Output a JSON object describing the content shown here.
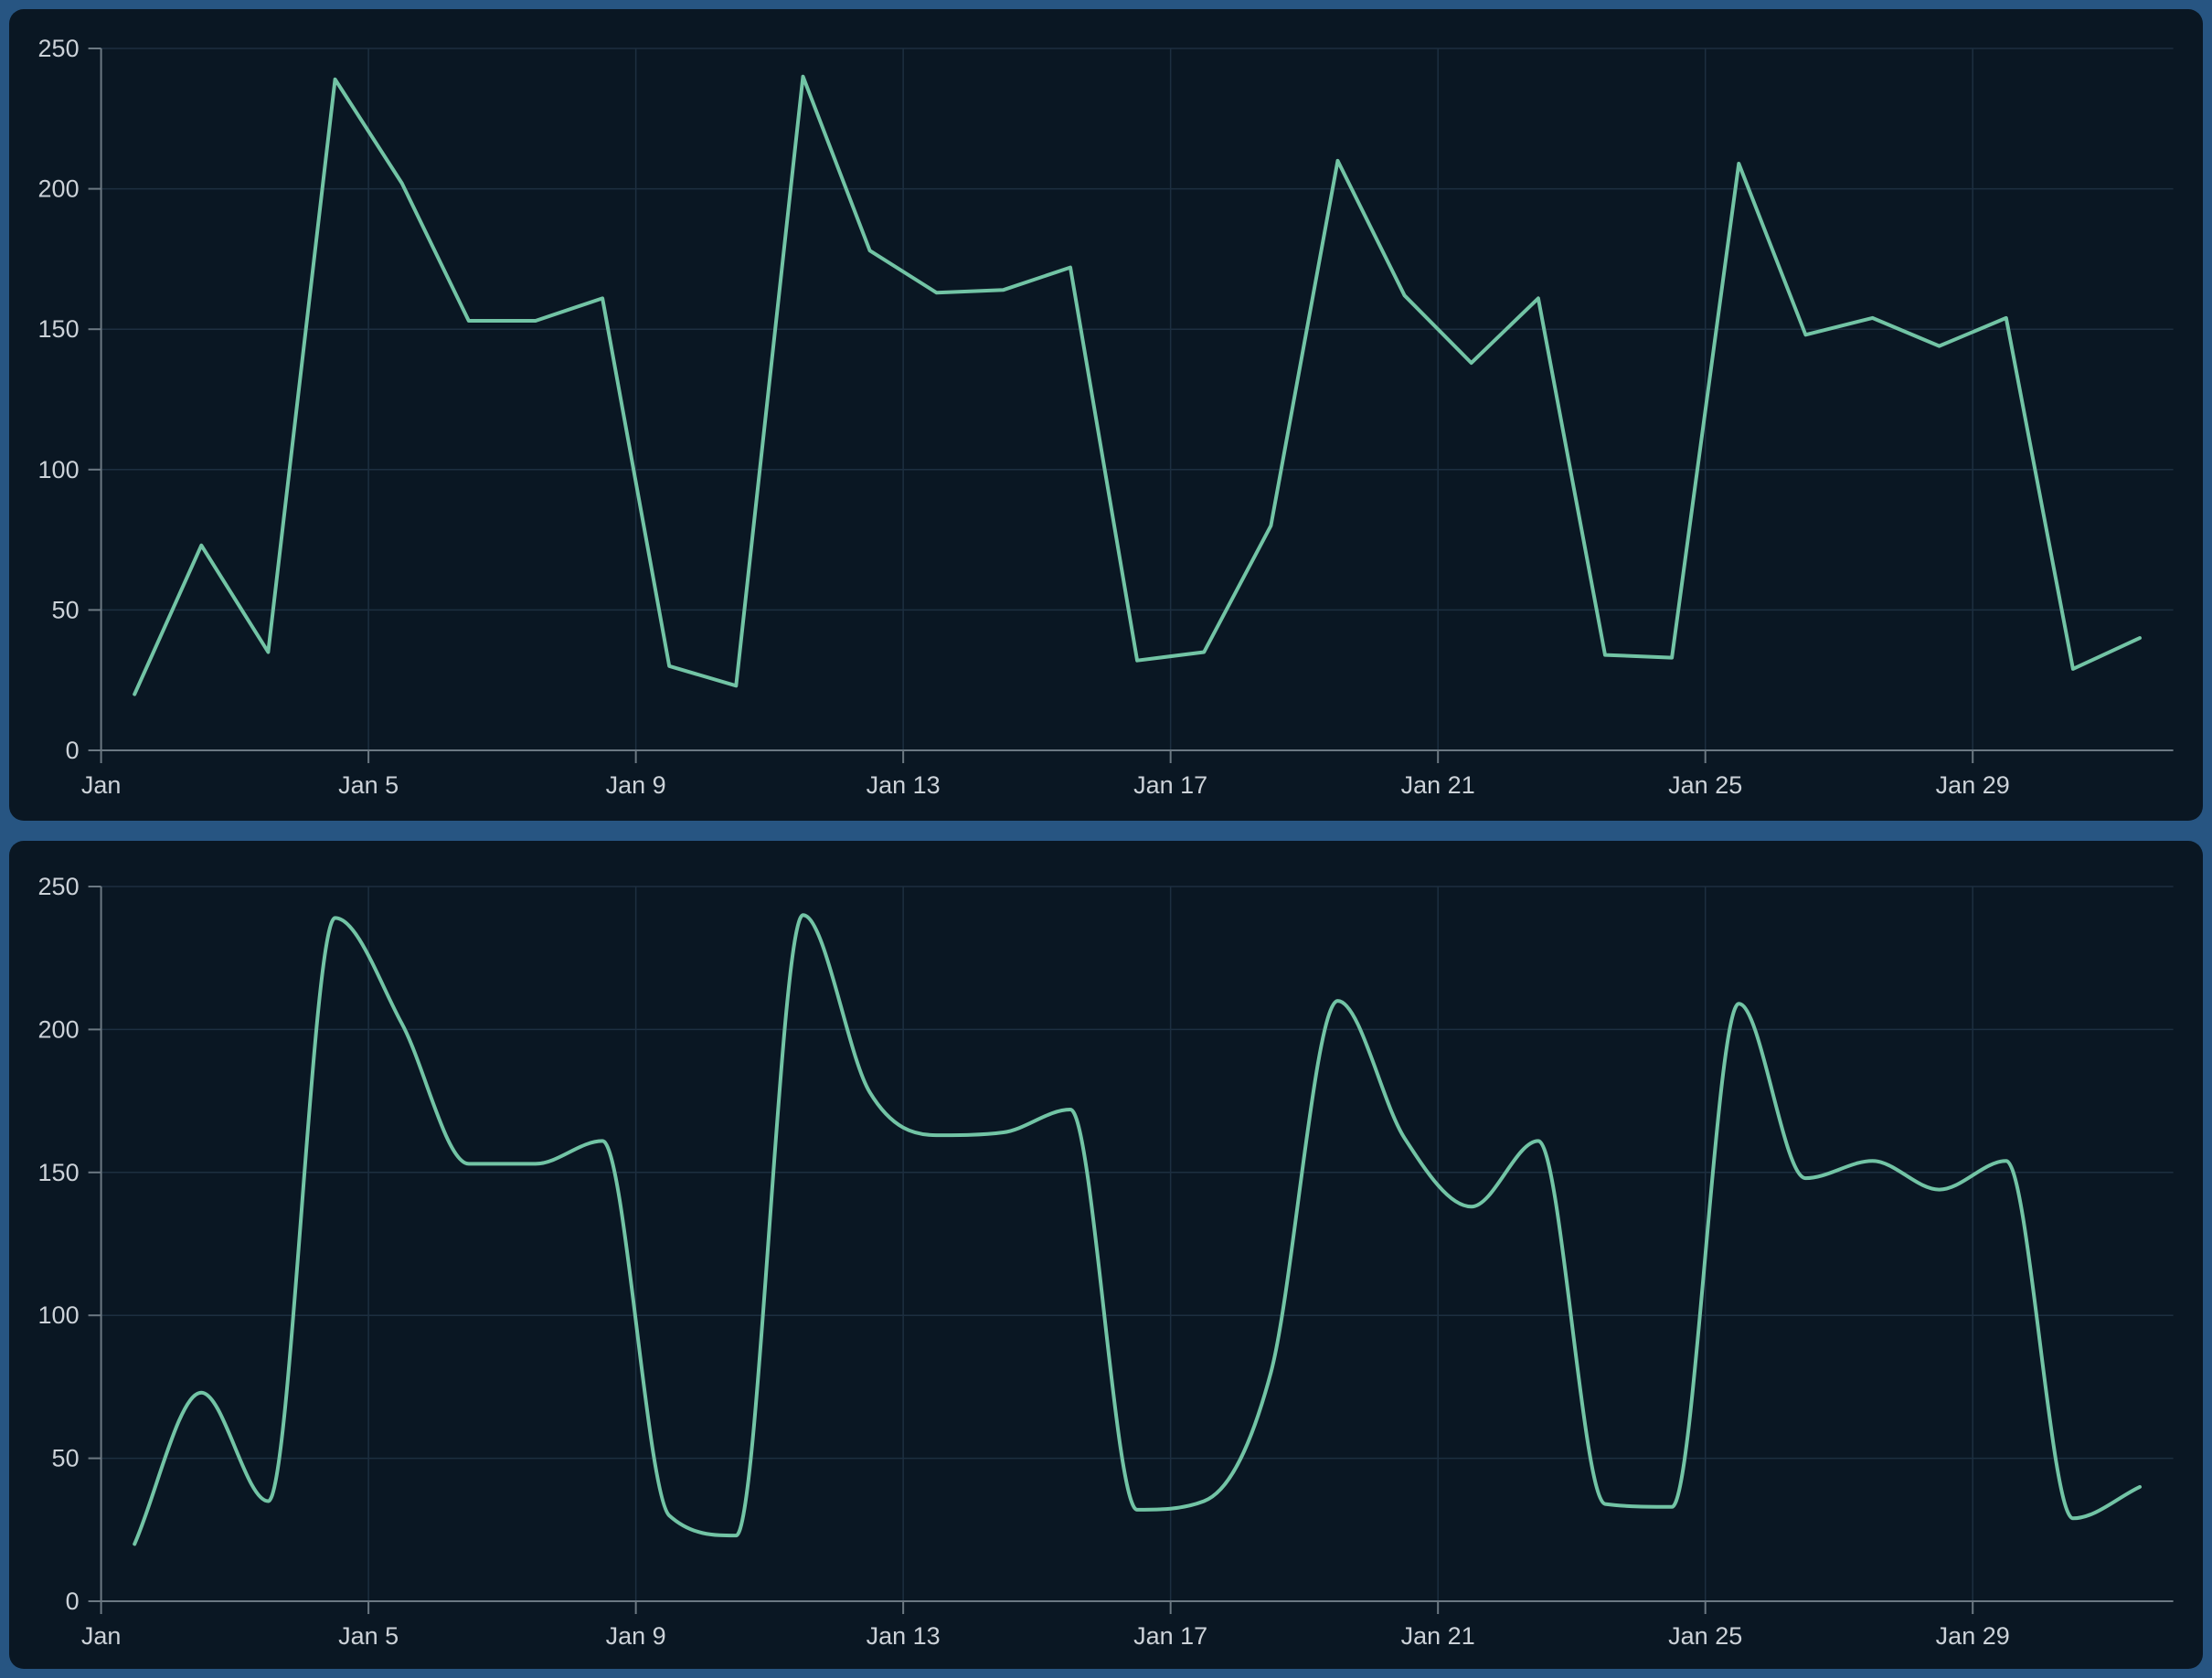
{
  "app": {
    "description": "Dashboard with two stacked dark line-chart panels showing the same daily series for January; top panel uses linear interpolation, bottom panel uses smoothed interpolation"
  },
  "chart_data": {
    "type": "line",
    "x": [
      "Jan 1",
      "Jan 2",
      "Jan 3",
      "Jan 4",
      "Jan 5",
      "Jan 6",
      "Jan 7",
      "Jan 8",
      "Jan 9",
      "Jan 10",
      "Jan 11",
      "Jan 12",
      "Jan 13",
      "Jan 14",
      "Jan 15",
      "Jan 16",
      "Jan 17",
      "Jan 18",
      "Jan 19",
      "Jan 20",
      "Jan 21",
      "Jan 22",
      "Jan 23",
      "Jan 24",
      "Jan 25",
      "Jan 26",
      "Jan 27",
      "Jan 28",
      "Jan 29",
      "Jan 30",
      "Jan 31"
    ],
    "series": [
      {
        "name": "daily-values",
        "values": [
          20,
          73,
          35,
          239,
          202,
          153,
          153,
          161,
          30,
          23,
          240,
          178,
          163,
          164,
          172,
          32,
          35,
          80,
          210,
          162,
          138,
          161,
          34,
          33,
          209,
          148,
          154,
          144,
          154,
          29,
          40
        ]
      }
    ],
    "panels": [
      {
        "id": "top-chart",
        "interpolation": "linear"
      },
      {
        "id": "bottom-chart",
        "interpolation": "smooth"
      }
    ],
    "title": "",
    "xlabel": "",
    "ylabel": "",
    "ylim": [
      0,
      250
    ],
    "y_ticks": [
      0,
      50,
      100,
      150,
      200,
      250
    ],
    "x_ticks": [
      {
        "day": 1,
        "label": "Jan"
      },
      {
        "day": 5,
        "label": "Jan 5"
      },
      {
        "day": 9,
        "label": "Jan 9"
      },
      {
        "day": 13,
        "label": "Jan 13"
      },
      {
        "day": 17,
        "label": "Jan 17"
      },
      {
        "day": 21,
        "label": "Jan 21"
      },
      {
        "day": 25,
        "label": "Jan 25"
      },
      {
        "day": 29,
        "label": "Jan 29"
      }
    ],
    "grid": true,
    "legend_position": "none"
  },
  "colors": {
    "frame": "#275582",
    "panel_bg": "#0a1723",
    "line": "#72c4a5",
    "grid": "#1d2f40",
    "axis": "#6c7983",
    "tick_label": "#ccd2d8"
  }
}
